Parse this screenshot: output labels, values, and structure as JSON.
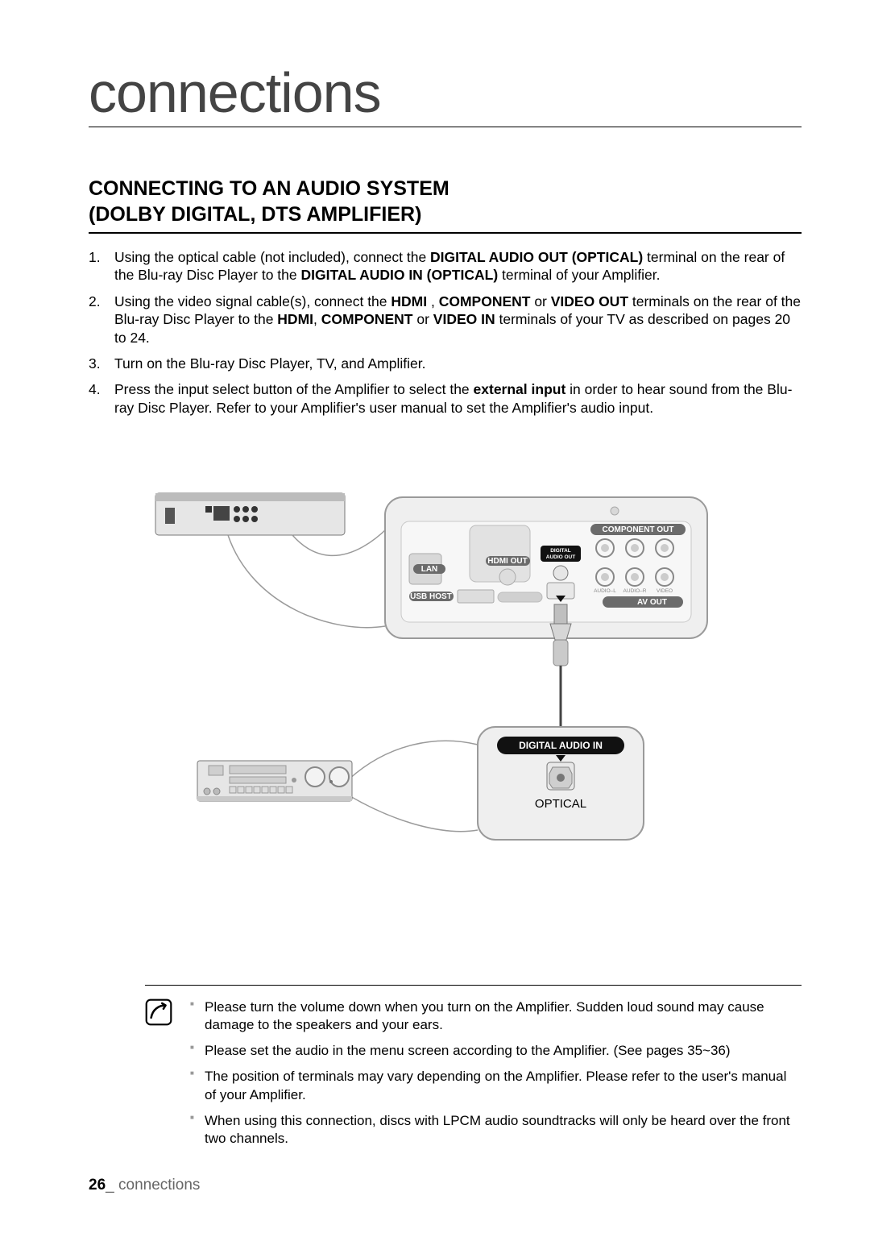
{
  "page_title": "connections",
  "section_heading_line1": "CONNECTING TO AN AUDIO SYSTEM",
  "section_heading_line2": "(DOLBY DIGITAL, DTS AMPLIFIER)",
  "steps": [
    {
      "num": "1.",
      "html": "Using the optical cable (not included), connect the <b>DIGITAL AUDIO OUT (OPTICAL)</b> terminal on the rear of the Blu-ray Disc Player to the <b>DIGITAL AUDIO IN (OPTICAL)</b> terminal of your Amplifier."
    },
    {
      "num": "2.",
      "html": "Using the video signal cable(s), connect the <b>HDMI</b> , <b>COMPONENT</b> or <b>VIDEO OUT</b> terminals on the rear of the Blu-ray Disc Player to the <b>HDMI</b>, <b>COMPONENT</b> or <b>VIDEO IN</b> terminals of your TV as described on pages 20 to 24."
    },
    {
      "num": "3.",
      "html": "Turn on the Blu-ray Disc Player, TV, and Amplifier."
    },
    {
      "num": "4.",
      "html": "Press the input select button of the Amplifier to select the <b>external input</b> in order to hear sound from the Blu-ray Disc Player. Refer to your Amplifier's user manual to set the Amplifier's audio input."
    }
  ],
  "diagram": {
    "rear_panel_labels": {
      "component_out": "COMPONENT OUT",
      "digital_audio_out_line1": "DIGITAL",
      "digital_audio_out_line2": "AUDIO OUT",
      "hdmi_out": "HDMI OUT",
      "lan": "LAN",
      "usb_host": "USB HOST",
      "av_out": "AV OUT",
      "audio_l": "AUDIO–L",
      "audio_r": "AUDIO–R",
      "video": "VIDEO"
    },
    "connector_label_top": "DIGITAL AUDIO IN",
    "connector_label_bottom": "OPTICAL",
    "colors": {
      "panel_fill": "#efefef",
      "panel_stroke": "#9a9a9a",
      "pill_bg": "#6b6b6b",
      "port_ring": "#888888",
      "cable": "#444444",
      "player_body": "#e6e6e6",
      "player_body_dark": "#bcbcbc"
    }
  },
  "notes": [
    "Please turn the volume down when you turn on the Amplifier. Sudden loud sound may cause damage to the speakers and your ears.",
    "Please set the audio in the menu screen according to the Amplifier. (See pages 35~36)",
    "The position of terminals may vary depending on the Amplifier. Please refer to the user's manual of your Amplifier.",
    "When using this connection, discs with LPCM audio soundtracks will only be heard over the front two channels."
  ],
  "footer": {
    "page_number": "26",
    "separator": "_ ",
    "section": "connections"
  }
}
